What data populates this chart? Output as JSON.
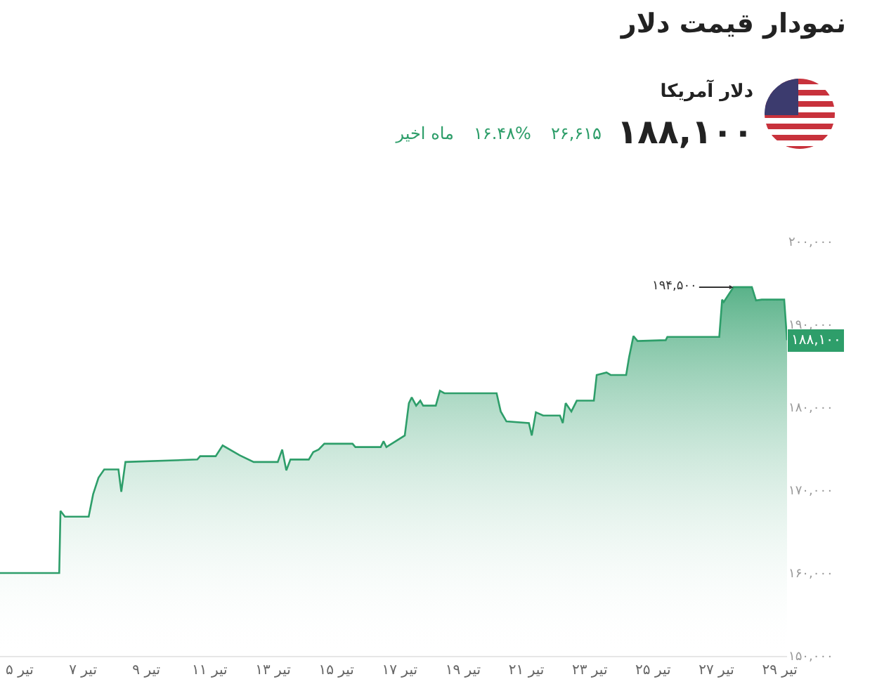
{
  "chart_data": {
    "type": "area",
    "title": "نمودار قیمت دلار",
    "subtitle": "دلار آمریکا",
    "annotations": [
      "۱۸۸,۱۰۰",
      "۲۶,۶۱۵",
      "۱۶.۴۸%",
      "ماه اخیر",
      {
        "text": "۱۹۴,۵۰۰",
        "x": 27.54,
        "y": 194500
      },
      {
        "text": "۱۸۸,۱۰۰",
        "x": 29.23,
        "y": 188100
      }
    ],
    "x": [
      4.38,
      6.25,
      6.29,
      6.43,
      7.18,
      7.32,
      7.49,
      7.67,
      8.12,
      8.21,
      8.34,
      10.61,
      10.7,
      11.19,
      11.41,
      11.95,
      12.39,
      13.15,
      13.29,
      13.42,
      13.55,
      14.13,
      14.27,
      14.44,
      14.62,
      15.51,
      15.6,
      16.4,
      16.49,
      16.58,
      17.16,
      17.29,
      17.38,
      17.52,
      17.65,
      17.74,
      18.14,
      18.27,
      18.41,
      20.06,
      20.19,
      20.37,
      21.08,
      21.17,
      21.3,
      21.53,
      22.06,
      22.15,
      22.24,
      22.42,
      22.59,
      23.13,
      23.22,
      23.53,
      23.66,
      24.15,
      24.24,
      24.38,
      24.51,
      25.4,
      25.45,
      27.09,
      27.18,
      27.23,
      27.54,
      28.12,
      28.25,
      28.43,
      29.14,
      29.23
    ],
    "series": [
      {
        "color": "#2e9e6a",
        "values": [
          160000,
          160000,
          167500,
          166800,
          166800,
          169500,
          171500,
          172500,
          172500,
          169800,
          173400,
          173700,
          174100,
          174100,
          175400,
          174200,
          173400,
          173400,
          174900,
          172400,
          173700,
          173700,
          174600,
          174900,
          175600,
          175600,
          175200,
          175200,
          175900,
          175200,
          176600,
          180500,
          181200,
          180200,
          180800,
          180200,
          180200,
          182000,
          181700,
          181700,
          179500,
          178300,
          178100,
          176600,
          179400,
          179000,
          179000,
          178100,
          180500,
          179500,
          180800,
          180800,
          183900,
          184200,
          183900,
          183900,
          186000,
          188600,
          188000,
          188100,
          188500,
          188500,
          193000,
          192700,
          194500,
          194500,
          192900,
          193000,
          193000,
          188100
        ]
      }
    ],
    "xlim": [
      4.38,
      29.23
    ],
    "xticks": [
      {
        "value": 5,
        "label": "۵ تیر"
      },
      {
        "value": 7,
        "label": "۷ تیر"
      },
      {
        "value": 9,
        "label": "۹ تیر"
      },
      {
        "value": 11,
        "label": "۱۱ تیر"
      },
      {
        "value": 13,
        "label": "۱۳ تیر"
      },
      {
        "value": 15,
        "label": "۱۵ تیر"
      },
      {
        "value": 17,
        "label": "۱۷ تیر"
      },
      {
        "value": 19,
        "label": "۱۹ تیر"
      },
      {
        "value": 21,
        "label": "۲۱ تیر"
      },
      {
        "value": 23,
        "label": "۲۳ تیر"
      },
      {
        "value": 25,
        "label": "۲۵ تیر"
      },
      {
        "value": 27,
        "label": "۲۷ تیر"
      },
      {
        "value": 29,
        "label": "۲۹ تیر"
      }
    ],
    "ylim": [
      150000,
      200000
    ],
    "yticks": [
      {
        "value": 150000,
        "label": "۱۵۰,۰۰۰"
      },
      {
        "value": 160000,
        "label": "۱۶۰,۰۰۰"
      },
      {
        "value": 170000,
        "label": "۱۷۰,۰۰۰"
      },
      {
        "value": 180000,
        "label": "۱۸۰,۰۰۰"
      },
      {
        "value": 190000,
        "label": "۱۹۰,۰۰۰"
      },
      {
        "value": 200000,
        "label": "۲۰۰,۰۰۰"
      }
    ],
    "grid": false
  }
}
